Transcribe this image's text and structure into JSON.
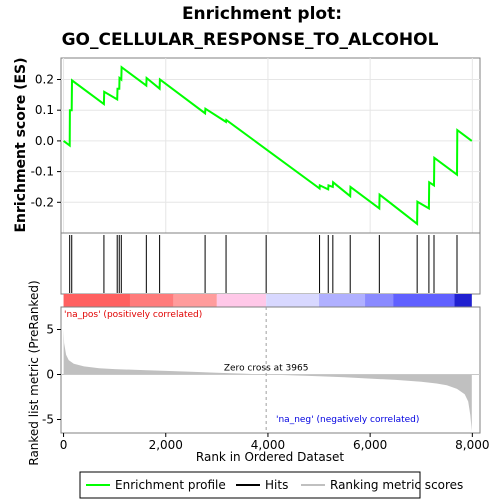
{
  "chart_data": {
    "type": "line",
    "title": "Enrichment plot:",
    "subtitle": "GO_CELLULAR_RESPONSE_TO_ALCOHOL",
    "top_panel": {
      "ylabel": "Enrichment score (ES)",
      "ylim": [
        -0.3,
        0.27
      ],
      "yticks": [
        -0.2,
        -0.1,
        0.0,
        0.1,
        0.2
      ],
      "ytick_labels": [
        "-0.2",
        "-0.1",
        "0.0",
        "0.1",
        "0.2"
      ],
      "grid": true,
      "series": [
        {
          "name": "Enrichment profile",
          "color": "#00ff00",
          "x": [
            0,
            120,
            125,
            160,
            165,
            790,
            795,
            1050,
            1055,
            1090,
            1095,
            1130,
            1135,
            1620,
            1625,
            1880,
            1885,
            2770,
            2775,
            3180,
            3185,
            5010,
            5015,
            5180,
            5185,
            5270,
            5275,
            5610,
            5615,
            6180,
            6185,
            6920,
            6925,
            7150,
            7155,
            7250,
            7255,
            7700,
            7705,
            7990
          ],
          "y": [
            0,
            -0.015,
            0.1,
            0.1,
            0.197,
            0.12,
            0.16,
            0.135,
            0.17,
            0.17,
            0.205,
            0.2,
            0.24,
            0.18,
            0.205,
            0.17,
            0.2,
            0.09,
            0.105,
            0.062,
            0.068,
            -0.155,
            -0.145,
            -0.158,
            -0.145,
            -0.15,
            -0.135,
            -0.18,
            -0.15,
            -0.22,
            -0.175,
            -0.27,
            -0.198,
            -0.22,
            -0.135,
            -0.145,
            -0.055,
            -0.11,
            0.035,
            0.0
          ]
        }
      ]
    },
    "hits": {
      "x": [
        120,
        160,
        790,
        1050,
        1090,
        1130,
        1620,
        1880,
        2770,
        3180,
        3965,
        5010,
        5180,
        5270,
        5610,
        6180,
        6920,
        7150,
        7250,
        7700
      ]
    },
    "color_bar": {
      "segments": [
        {
          "from": 0,
          "to": 1300,
          "color": "#ff6060"
        },
        {
          "from": 1300,
          "to": 2150,
          "color": "#ff7b7b"
        },
        {
          "from": 2150,
          "to": 3000,
          "color": "#ff9c9c"
        },
        {
          "from": 3000,
          "to": 3965,
          "color": "#ffc8e8"
        },
        {
          "from": 3965,
          "to": 5000,
          "color": "#d8d8ff"
        },
        {
          "from": 5000,
          "to": 5900,
          "color": "#b0b0ff"
        },
        {
          "from": 5900,
          "to": 6450,
          "color": "#8a8aff"
        },
        {
          "from": 6450,
          "to": 7650,
          "color": "#6060ff"
        },
        {
          "from": 7650,
          "to": 7990,
          "color": "#2020d0"
        }
      ]
    },
    "bottom_panel": {
      "ylabel": "Ranked list metric (PreRanked)",
      "ylim": [
        -6.5,
        7.5
      ],
      "yticks": [
        -5,
        0,
        5
      ],
      "ytick_labels": [
        "-5",
        "0",
        "5"
      ],
      "metric_profile": {
        "x": [
          0,
          10,
          50,
          100,
          200,
          400,
          700,
          1000,
          1500,
          2000,
          2500,
          3000,
          3500,
          3965,
          4500,
          5000,
          5500,
          6000,
          6500,
          7000,
          7300,
          7500,
          7700,
          7850,
          7920,
          7960,
          7990
        ],
        "y": [
          5.0,
          3.5,
          2.2,
          1.6,
          1.2,
          0.9,
          0.7,
          0.6,
          0.5,
          0.4,
          0.3,
          0.2,
          0.1,
          0.0,
          -0.1,
          -0.2,
          -0.3,
          -0.45,
          -0.6,
          -0.8,
          -1.0,
          -1.2,
          -1.6,
          -2.2,
          -3.0,
          -4.5,
          -6.3
        ]
      },
      "zero_cross_label": "Zero cross at 3965",
      "zero_cross": 3965,
      "pos_label": "'na_pos' (positively correlated)",
      "neg_label": "'na_neg' (negatively correlated)"
    },
    "x_axis": {
      "xlabel": "Rank in Ordered Dataset",
      "xlim": [
        -50,
        8150
      ],
      "xticks": [
        0,
        2000,
        4000,
        6000,
        8000
      ],
      "xtick_labels": [
        "0",
        "2,000",
        "4,000",
        "6,000",
        "8,000"
      ]
    },
    "legend": {
      "placement": "bottom",
      "entries": [
        {
          "label": "Enrichment profile",
          "color": "#00ff00"
        },
        {
          "label": "Hits",
          "color": "#000000"
        },
        {
          "label": "Ranking metric scores",
          "color": "#c0c0c0"
        }
      ]
    }
  }
}
